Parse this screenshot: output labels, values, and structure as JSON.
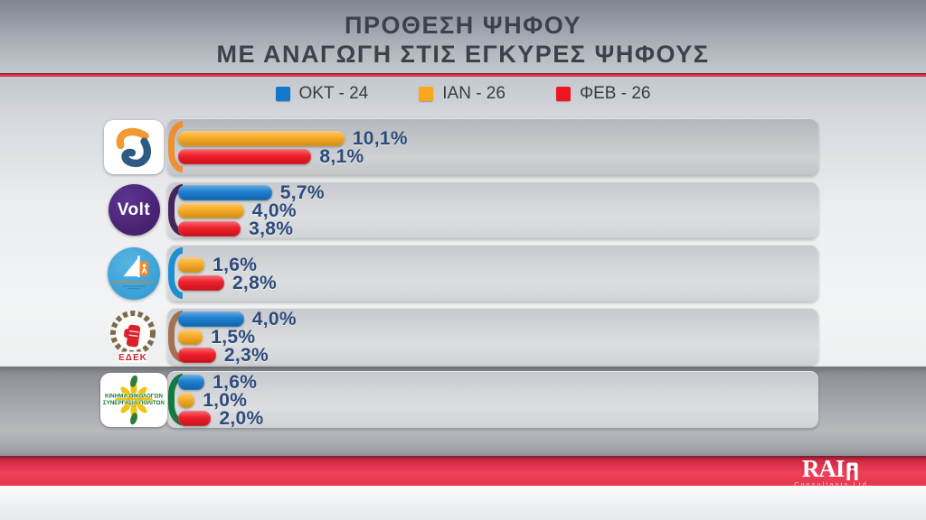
{
  "header": {
    "title_line1": "ΠΡΟΘΕΣΗ ΨΗΦΟΥ",
    "title_line2": "ΜΕ ΑΝΑΓΩΓΗ ΣΤΙΣ ΕΓΚΥΡΕΣ ΨΗΦΟΥΣ"
  },
  "legend": {
    "items": [
      {
        "label": "ΟΚΤ - 24",
        "color": "#1278cd"
      },
      {
        "label": "ΙΑΝ - 26",
        "color": "#f8a81c"
      },
      {
        "label": "ΦΕΒ - 26",
        "color": "#ee1520"
      }
    ]
  },
  "chart_data": {
    "type": "bar",
    "orientation": "horizontal",
    "title": "ΠΡΟΘΕΣΗ ΨΗΦΟΥ ΜΕ ΑΝΑΓΩΓΗ ΣΤΙΣ ΕΓΚΥΡΕΣ ΨΗΦΟΥΣ",
    "unit": "%",
    "decimal_style": "comma",
    "series": [
      "ΟΚΤ - 24",
      "ΙΑΝ - 26",
      "ΦΕΒ - 26"
    ],
    "series_colors": [
      "#1278cd",
      "#f8a81c",
      "#ee1520"
    ],
    "parties": [
      {
        "logo_text": "",
        "accent": "#ee8f33",
        "bars": [
          {
            "series": "ΙΑΝ - 26",
            "value": 10.1,
            "label": "10,1%",
            "color": "#f8a81c"
          },
          {
            "series": "ΦΕΒ - 26",
            "value": 8.1,
            "label": "8,1%",
            "color": "#ee1520"
          }
        ]
      },
      {
        "logo_text": "Volt",
        "accent": "#46265a",
        "bars": [
          {
            "series": "ΟΚΤ - 24",
            "value": 5.7,
            "label": "5,7%",
            "color": "#1278cd"
          },
          {
            "series": "ΙΑΝ - 26",
            "value": 4.0,
            "label": "4,0%",
            "color": "#f8a81c"
          },
          {
            "series": "ΦΕΒ - 26",
            "value": 3.8,
            "label": "3,8%",
            "color": "#ee1520"
          }
        ]
      },
      {
        "logo_text": "ΔΗΜΟΚΡΑΤΙΚΗ ΠΑΡΑΤΑΞΗ",
        "accent": "#1f8fd0",
        "bars": [
          {
            "series": "ΙΑΝ - 26",
            "value": 1.6,
            "label": "1,6%",
            "color": "#f8a81c"
          },
          {
            "series": "ΦΕΒ - 26",
            "value": 2.8,
            "label": "2,8%",
            "color": "#ee1520"
          }
        ]
      },
      {
        "logo_text": "ΕΔΕΚ",
        "accent": "#a37155",
        "bars": [
          {
            "series": "ΟΚΤ - 24",
            "value": 4.0,
            "label": "4,0%",
            "color": "#1278cd"
          },
          {
            "series": "ΙΑΝ - 26",
            "value": 1.5,
            "label": "1,5%",
            "color": "#f8a81c"
          },
          {
            "series": "ΦΕΒ - 26",
            "value": 2.3,
            "label": "2,3%",
            "color": "#ee1520"
          }
        ]
      },
      {
        "logo_text": "ΚΙΝΗΜΑ ΟΙΚΟΛΟΓΩΝ ΣΥΝΕΡΓΑΣΙΑ ΠΟΛΙΤΩΝ",
        "logo_text_line1": "ΚΙΝΗΜΑ ΟΙΚΟΛΟΓΩΝ",
        "logo_text_line2": "ΣΥΝΕΡΓΑΣΙΑ ΠΟΛΙΤΩΝ",
        "accent": "#157a40",
        "bars": [
          {
            "series": "ΟΚΤ - 24",
            "value": 1.6,
            "label": "1,6%",
            "color": "#1278cd"
          },
          {
            "series": "ΙΑΝ - 26",
            "value": 1.0,
            "label": "1,0%",
            "color": "#f8a81c"
          },
          {
            "series": "ΦΕΒ - 26",
            "value": 2.0,
            "label": "2,0%",
            "color": "#ee1520"
          }
        ]
      }
    ]
  },
  "footer": {
    "brand": "RAI",
    "subtext": "Consultants Ltd"
  }
}
